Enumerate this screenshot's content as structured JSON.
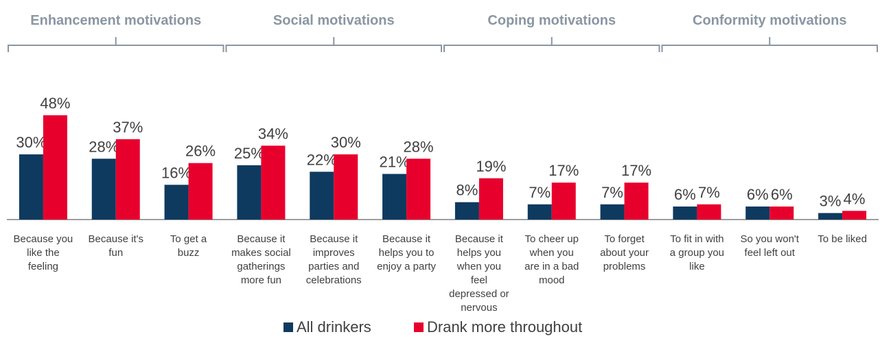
{
  "chart_data": {
    "type": "bar",
    "groups": [
      {
        "label": "Enhancement motivations",
        "start": 0,
        "end": 2
      },
      {
        "label": "Social motivations",
        "start": 3,
        "end": 5
      },
      {
        "label": "Coping motivations",
        "start": 6,
        "end": 8
      },
      {
        "label": "Conformity motivations",
        "start": 9,
        "end": 11
      }
    ],
    "categories": [
      [
        "Because you",
        "like the",
        "feeling"
      ],
      [
        "Because it's",
        "fun"
      ],
      [
        "To get a",
        "buzz"
      ],
      [
        "Because it",
        "makes social",
        "gatherings",
        "more fun"
      ],
      [
        "Because it",
        "improves",
        "parties and",
        "celebrations"
      ],
      [
        "Because it",
        "helps you to",
        "enjoy a party"
      ],
      [
        "Because it",
        "helps you",
        "when you",
        "feel",
        "depressed or",
        "nervous"
      ],
      [
        "To cheer up",
        "when you",
        "are in a bad",
        "mood"
      ],
      [
        "To forget",
        "about your",
        "problems"
      ],
      [
        "To fit in with",
        "a group you",
        "like"
      ],
      [
        "So you won't",
        "feel left out"
      ],
      [
        "To be liked"
      ]
    ],
    "series": [
      {
        "name": "All drinkers",
        "color": "#0e3a5f",
        "values": [
          30,
          28,
          16,
          25,
          22,
          21,
          8,
          7,
          7,
          6,
          6,
          3
        ],
        "labels": [
          "30%",
          "28%",
          "16%",
          "25%",
          "22%",
          "21%",
          "8%",
          "7%",
          "7%",
          "6%",
          "6%",
          "3%"
        ]
      },
      {
        "name": "Drank more throughout",
        "color": "#e8002d",
        "values": [
          48,
          37,
          26,
          34,
          30,
          28,
          19,
          17,
          17,
          7,
          6,
          4
        ],
        "labels": [
          "48%",
          "37%",
          "26%",
          "34%",
          "30%",
          "28%",
          "19%",
          "17%",
          "17%",
          "7%",
          "6%",
          "4%"
        ]
      }
    ],
    "ylim": [
      0,
      50
    ],
    "legend": "bottom-center",
    "grid": false
  }
}
